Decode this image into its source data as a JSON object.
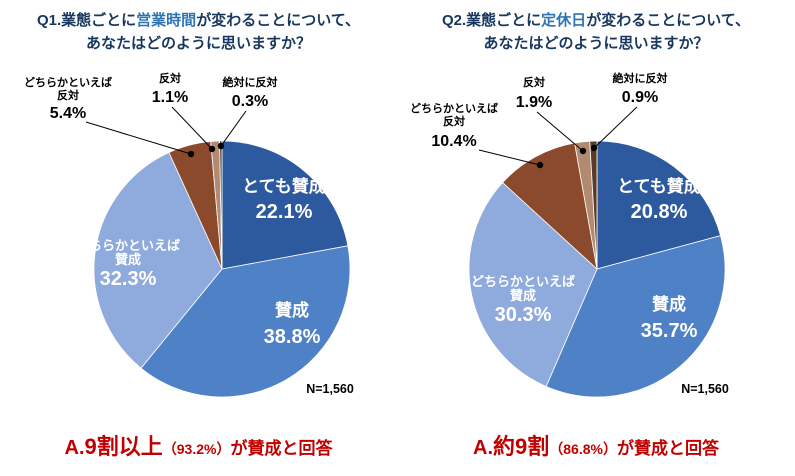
{
  "colors": {
    "title": "#17375e",
    "title_highlight": "#2e74b5",
    "answer_red": "#c00000",
    "leader_line": "#000000"
  },
  "chart_data": [
    {
      "type": "pie",
      "title": {
        "prefix": "Q1.業態ごとに",
        "highlight": "営業時間",
        "suffix": "が変わることについて、",
        "line2": "あなたはどのように思いますか？"
      },
      "n_label": "N=1,560",
      "slices": [
        {
          "label": "とても賛成",
          "label_lines": [
            "とても賛成"
          ],
          "value": 22.1,
          "pct_label": "22.1%",
          "color": "#2d5a9e",
          "placement": "inside"
        },
        {
          "label": "賛成",
          "label_lines": [
            "賛成"
          ],
          "value": 38.8,
          "pct_label": "38.8%",
          "color": "#4f81c7",
          "placement": "inside"
        },
        {
          "label": "どちらかといえば賛成",
          "label_lines": [
            "どちらかといえば",
            "賛成"
          ],
          "value": 32.3,
          "pct_label": "32.3%",
          "color": "#8faadc",
          "placement": "inside"
        },
        {
          "label": "どちらかといえば反対",
          "label_lines": [
            "どちらかといえば",
            "反対"
          ],
          "value": 5.4,
          "pct_label": "5.4%",
          "color": "#8c4a2d",
          "placement": "outside"
        },
        {
          "label": "反対",
          "label_lines": [
            "反対"
          ],
          "value": 1.1,
          "pct_label": "1.1%",
          "color": "#b28a70",
          "placement": "outside"
        },
        {
          "label": "絶対に反対",
          "label_lines": [
            "絶対に反対"
          ],
          "value": 0.3,
          "pct_label": "0.3%",
          "color": "#5a3a2a",
          "placement": "outside"
        }
      ],
      "answer": {
        "prefix": "A.",
        "big": "9割以上",
        "paren": "（93.2%）",
        "rest": "が賛成と回答"
      }
    },
    {
      "type": "pie",
      "title": {
        "prefix": "Q2.業態ごとに",
        "highlight": "定休日",
        "suffix": "が変わることについて、",
        "line2": "あなたはどのように思いますか？"
      },
      "n_label": "N=1,560",
      "slices": [
        {
          "label": "とても賛成",
          "label_lines": [
            "とても賛成"
          ],
          "value": 20.8,
          "pct_label": "20.8%",
          "color": "#2d5a9e",
          "placement": "inside"
        },
        {
          "label": "賛成",
          "label_lines": [
            "賛成"
          ],
          "value": 35.7,
          "pct_label": "35.7%",
          "color": "#4f81c7",
          "placement": "inside"
        },
        {
          "label": "どちらかといえば賛成",
          "label_lines": [
            "どちらかといえば",
            "賛成"
          ],
          "value": 30.3,
          "pct_label": "30.3%",
          "color": "#8faadc",
          "placement": "inside"
        },
        {
          "label": "どちらかといえば反対",
          "label_lines": [
            "どちらかといえば",
            "反対"
          ],
          "value": 10.4,
          "pct_label": "10.4%",
          "color": "#8c4a2d",
          "placement": "outside"
        },
        {
          "label": "反対",
          "label_lines": [
            "反対"
          ],
          "value": 1.9,
          "pct_label": "1.9%",
          "color": "#b28a70",
          "placement": "outside"
        },
        {
          "label": "絶対に反対",
          "label_lines": [
            "絶対に反対"
          ],
          "value": 0.9,
          "pct_label": "0.9%",
          "color": "#5a3a2a",
          "placement": "outside"
        }
      ],
      "answer": {
        "prefix": "A.",
        "big": "約9割",
        "paren": "（86.8%）",
        "rest": "が賛成と回答"
      }
    }
  ]
}
